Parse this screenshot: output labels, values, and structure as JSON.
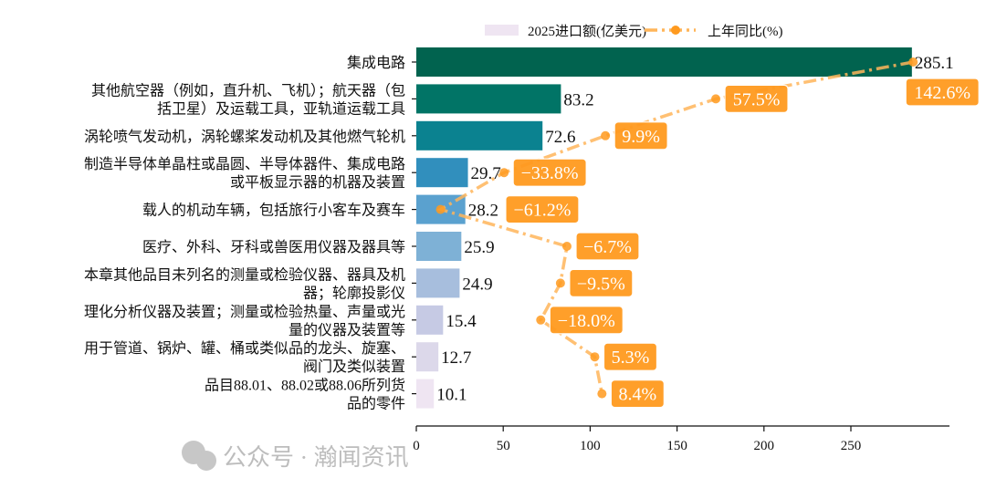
{
  "chart_data": {
    "type": "bar",
    "orientation": "horizontal",
    "categories": [
      [
        "集成电路"
      ],
      [
        "其他航空器（例如，直升机、飞机）；航天器（包",
        "括卫星）及运载工具，亚轨道运载工具"
      ],
      [
        "涡轮喷气发动机，涡轮螺桨发动机及其他燃气轮机"
      ],
      [
        "制造半导体单晶柱或晶圆、半导体器件、集成电路",
        "或平板显示器的机器及装置"
      ],
      [
        "载人的机动车辆，包括旅行小客车及赛车"
      ],
      [
        "医疗、外科、牙科或兽医用仪器及器具等"
      ],
      [
        "本章其他品目未列名的测量或检验仪器、器具及机",
        "器；轮廓投影仪"
      ],
      [
        "理化分析仪器及装置；测量或检验热量、声量或光",
        "量的仪器及装置等"
      ],
      [
        "用于管道、锅炉、罐、桶或类似品的龙头、旋塞、",
        "阀门及类似装置"
      ],
      [
        "品目88.01、88.02或88.06所列货",
        "品的零件"
      ]
    ],
    "series": [
      {
        "name": "2025进口额(亿美元)",
        "type": "bar",
        "values": [
          285.1,
          83.2,
          72.6,
          29.7,
          28.2,
          25.9,
          24.9,
          15.4,
          12.7,
          10.1
        ],
        "value_labels": [
          "285.1",
          "83.2",
          "72.6",
          "29.7",
          "28.2",
          "25.9",
          "24.9",
          "15.4",
          "12.7",
          "10.1"
        ],
        "colors": [
          "#01634f",
          "#017466",
          "#0b8290",
          "#318fbd",
          "#5aa1cf",
          "#7eb1d6",
          "#a7bedd",
          "#c6cae4",
          "#dcd8ea",
          "#efe5f2"
        ]
      },
      {
        "name": "上年同比(%)",
        "type": "line",
        "style": "dash-dot with hexagon markers",
        "color": "#ffb55a",
        "label_color": "#ff9a1f",
        "values": [
          142.6,
          57.5,
          9.9,
          -33.8,
          -61.2,
          -6.7,
          -9.5,
          -18.0,
          5.3,
          8.4
        ],
        "value_labels": [
          "142.6%",
          "57.5%",
          "9.9%",
          "−33.8%",
          "−61.2%",
          "−6.7%",
          "−9.5%",
          "−18.0%",
          "5.3%",
          "8.4%"
        ]
      }
    ],
    "xaxis": {
      "ticks": [
        0,
        50,
        100,
        150,
        200,
        250
      ],
      "tick_labels": [
        "0",
        "50",
        "100",
        "150",
        "200",
        "250"
      ],
      "xlim": [
        0,
        300
      ]
    },
    "legend": {
      "placement": "top-center"
    },
    "grid": false
  },
  "watermark": "公众号 · 瀚闻资讯"
}
